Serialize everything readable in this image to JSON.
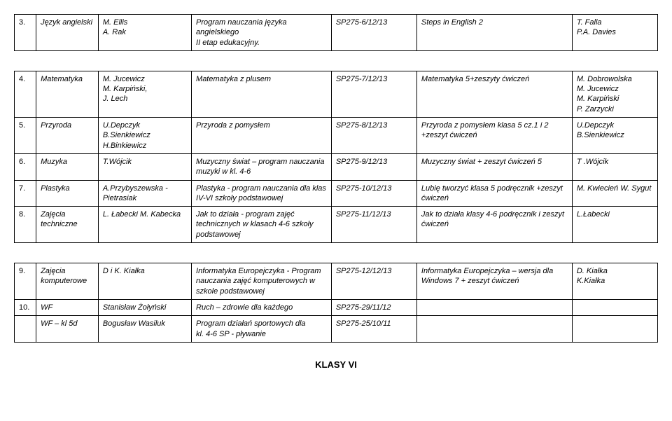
{
  "tableA": {
    "rows": [
      {
        "num": "3.",
        "subject": "Język angielski",
        "author": "M. Ellis\nA. Rak",
        "program": "Program nauczania języka angielskiego\nII etap edukacyjny.",
        "code": "SP275-6/12/13",
        "textbook": "Steps in English 2",
        "textauth": "T. Falla\nP.A. Davies"
      }
    ]
  },
  "tableB": {
    "rows": [
      {
        "num": "4.",
        "subject": "Matematyka",
        "author": "M. Jucewicz\nM. Karpiński,\nJ. Lech",
        "program": "Matematyka z plusem",
        "code": "SP275-7/12/13",
        "textbook": "Matematyka 5+zeszyty ćwiczeń",
        "textauth": "M. Dobrowolska\nM. Jucewicz\nM. Karpiński\nP. Zarzycki"
      },
      {
        "num": "5.",
        "subject": "Przyroda",
        "author": "U.Depczyk\nB.Sienkiewicz\nH.Binkiewicz",
        "program": "Przyroda z pomysłem",
        "code": "SP275-8/12/13",
        "textbook": "Przyroda z pomysłem klasa 5  cz.1 i 2 +zeszyt ćwiczeń",
        "textauth": "U.Depczyk\nB.Sienkiewicz"
      },
      {
        "num": "6.",
        "subject": "Muzyka",
        "author": "T.Wójcik",
        "program": "Muzyczny świat – program nauczania muzyki w kl. 4-6",
        "code": "SP275-9/12/13",
        "textbook": "Muzyczny świat + zeszyt ćwiczeń 5",
        "textauth": "T .Wójcik"
      },
      {
        "num": "7.",
        "subject": "Plastyka",
        "author": "A.Przybyszewska - Pietrasiak",
        "program": "Plastyka - program nauczania dla klas IV-VI szkoły podstawowej",
        "code": "SP275-10/12/13",
        "textbook": "Lubię tworzyć klasa 5 podręcznik +zeszyt ćwiczeń",
        "textauth": "M. Kwiecień W. Sygut"
      },
      {
        "num": "8.",
        "subject": "Zajęcia techniczne",
        "author": "L. Łabecki M. Kabecka",
        "program": "Jak to działa - program zajęć technicznych w klasach 4-6 szkoły podstawowej",
        "code": "SP275-11/12/13",
        "textbook": "Jak to działa klasy 4-6 podręcznik i zeszyt ćwiczeń",
        "textauth": "L.Łabecki"
      }
    ]
  },
  "tableC": {
    "rows": [
      {
        "num": "9.",
        "subject": "Zajęcia komputerowe",
        "author": "D i K. Kiałka",
        "program": "Informatyka Europejczyka - Program nauczania zajęć komputerowych w szkole podstawowej",
        "code": "SP275-12/12/13",
        "textbook": "Informatyka Europejczyka – wersja dla Windows 7 + zeszyt ćwiczeń",
        "textauth": "D. Kiałka\nK.Kiałka"
      },
      {
        "num": "10.",
        "subject": "WF",
        "author": "Stanisław Żołyński",
        "program": "Ruch – zdrowie dla każdego",
        "code": "SP275-29/11/12",
        "textbook": "",
        "textauth": ""
      }
    ]
  },
  "tableD": {
    "rows": [
      {
        "num": "",
        "subject": "WF – kl 5d",
        "author": "Bogusław Wasiluk",
        "program": "Program działań sportowych dla\nkl. 4-6 SP - pływanie",
        "code": "SP275-25/10/11",
        "textbook": "",
        "textauth": ""
      }
    ]
  },
  "heading": "KLASY VI"
}
